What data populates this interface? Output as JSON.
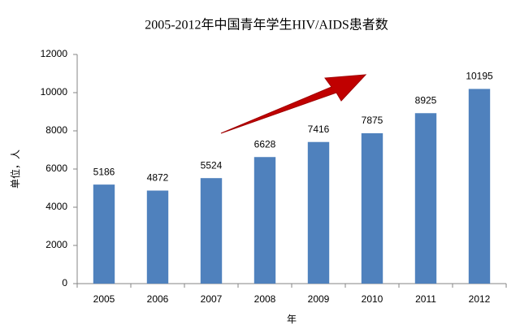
{
  "chart_data": {
    "type": "bar",
    "title": "2005-2012年中国青年学生HIV/AIDS患者数",
    "y_label": "单位，人",
    "x_label": "年",
    "categories": [
      "2005",
      "2006",
      "2007",
      "2008",
      "2009",
      "2010",
      "2011",
      "2012"
    ],
    "values": [
      5186,
      4872,
      5524,
      6628,
      7416,
      7875,
      8925,
      10195
    ],
    "color": "#4f81bd",
    "ylim": [
      0,
      12000
    ],
    "yticks": [
      0,
      2000,
      4000,
      6000,
      8000,
      10000,
      12000
    ],
    "grid": false
  }
}
